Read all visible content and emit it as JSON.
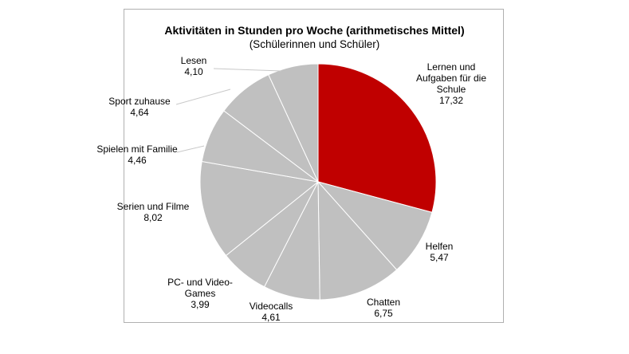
{
  "chart_data": {
    "type": "pie",
    "title": "Aktivitäten in Stunden pro Woche (arithmetisches Mittel)",
    "subtitle": "(Schülerinnen und Schüler)",
    "slices": [
      {
        "label": "Lernen und Aufgaben für die Schule",
        "label_lines": [
          "Lernen und",
          "Aufgaben für die",
          "Schule"
        ],
        "value": 17.32,
        "value_text": "17,32",
        "color": "#c00000"
      },
      {
        "label": "Helfen",
        "label_lines": [
          "Helfen"
        ],
        "value": 5.47,
        "value_text": "5,47",
        "color": "#c0c0c0"
      },
      {
        "label": "Chatten",
        "label_lines": [
          "Chatten"
        ],
        "value": 6.75,
        "value_text": "6,75",
        "color": "#c0c0c0"
      },
      {
        "label": "Videocalls",
        "label_lines": [
          "Videocalls"
        ],
        "value": 4.61,
        "value_text": "4,61",
        "color": "#c0c0c0"
      },
      {
        "label": "PC- und Video-Games",
        "label_lines": [
          "PC- und Video-",
          "Games"
        ],
        "value": 3.99,
        "value_text": "3,99",
        "color": "#c0c0c0"
      },
      {
        "label": "Serien und Filme",
        "label_lines": [
          "Serien und Filme"
        ],
        "value": 8.02,
        "value_text": "8,02",
        "color": "#c0c0c0"
      },
      {
        "label": "Spielen mit Familie",
        "label_lines": [
          "Spielen mit Familie"
        ],
        "value": 4.46,
        "value_text": "4,46",
        "color": "#c0c0c0"
      },
      {
        "label": "Sport zuhause",
        "label_lines": [
          "Sport zuhause"
        ],
        "value": 4.64,
        "value_text": "4,64",
        "color": "#c0c0c0"
      },
      {
        "label": "Lesen",
        "label_lines": [
          "Lesen"
        ],
        "value": 4.1,
        "value_text": "4,10",
        "color": "#c0c0c0"
      }
    ]
  }
}
